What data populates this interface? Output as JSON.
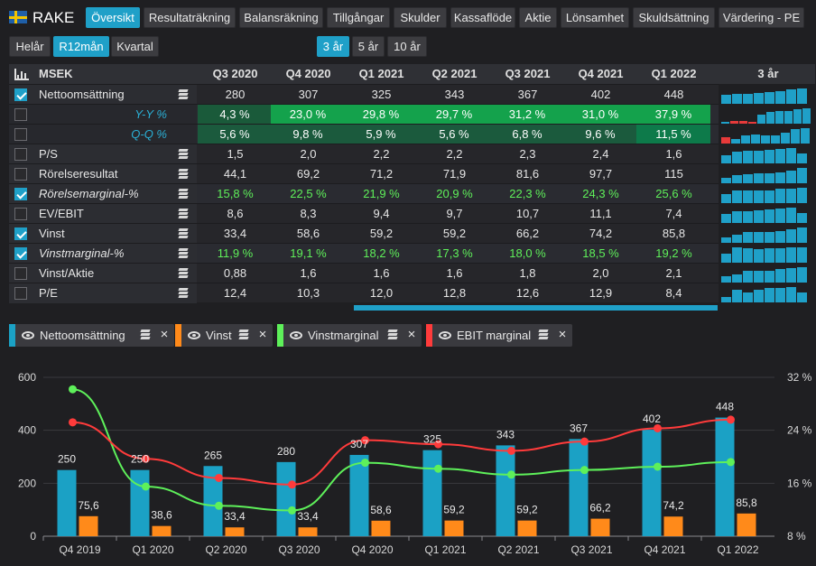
{
  "header": {
    "company": "RAKE"
  },
  "nav_tabs": [
    {
      "label": "Översikt",
      "active": true
    },
    {
      "label": "Resultaträkning",
      "active": false
    },
    {
      "label": "Balansräkning",
      "active": false
    },
    {
      "label": "Tillgångar",
      "active": false
    },
    {
      "label": "Skulder",
      "active": false
    },
    {
      "label": "Kassaflöde",
      "active": false
    },
    {
      "label": "Aktie",
      "active": false
    },
    {
      "label": "Lönsamhet",
      "active": false
    },
    {
      "label": "Skuldsättning",
      "active": false
    },
    {
      "label": "Värdering - PE",
      "active": false
    }
  ],
  "period_tabs": [
    {
      "label": "Helår",
      "active": false
    },
    {
      "label": "R12mån",
      "active": true
    },
    {
      "label": "Kvartal",
      "active": false
    }
  ],
  "range_tabs": [
    {
      "label": "3 år",
      "active": true
    },
    {
      "label": "5 år",
      "active": false
    },
    {
      "label": "10 år",
      "active": false
    }
  ],
  "table": {
    "unit": "MSEK",
    "columns": [
      "Q3 2020",
      "Q4 2020",
      "Q1 2021",
      "Q2 2021",
      "Q3 2021",
      "Q4 2021",
      "Q1 2022"
    ],
    "spark_header": "3 år",
    "rows": [
      {
        "label": "Nettoomsättning",
        "checked": true,
        "kind": "metric",
        "italic": false,
        "values": [
          "280",
          "307",
          "325",
          "343",
          "367",
          "402",
          "448"
        ],
        "spark": [
          0.58,
          0.62,
          0.66,
          0.72,
          0.77,
          0.85,
          0.95,
          1.0
        ]
      },
      {
        "label": "Y-Y %",
        "checked": false,
        "kind": "yy",
        "italic": true,
        "values": [
          "4,3 %",
          "23,0 %",
          "29,8 %",
          "29,7 %",
          "31,2 %",
          "31,0 %",
          "37,9 %"
        ],
        "spark": [
          0.08,
          -0.15,
          -0.2,
          -0.12,
          0.6,
          0.75,
          0.8,
          0.85,
          0.95,
          1.0
        ]
      },
      {
        "label": "Q-Q %",
        "checked": false,
        "kind": "qq",
        "italic": true,
        "values": [
          "5,6 %",
          "9,8 %",
          "5,9 %",
          "5,6 %",
          "6,8 %",
          "9,6 %",
          "11,5 %"
        ],
        "spark": [
          -0.4,
          0.3,
          0.5,
          0.6,
          0.5,
          0.55,
          0.7,
          0.95,
          1.0
        ]
      },
      {
        "label": "P/S",
        "checked": false,
        "kind": "metric",
        "italic": false,
        "values": [
          "1,5",
          "2,0",
          "2,2",
          "2,2",
          "2,3",
          "2,4",
          "1,6"
        ],
        "spark": [
          0.55,
          0.75,
          0.85,
          0.85,
          0.9,
          0.92,
          1.0,
          0.65
        ]
      },
      {
        "label": "Rörelseresultat",
        "checked": false,
        "kind": "metric",
        "italic": false,
        "values": [
          "44,1",
          "69,2",
          "71,2",
          "71,9",
          "81,6",
          "97,7",
          "115"
        ],
        "spark": [
          0.38,
          0.5,
          0.6,
          0.62,
          0.63,
          0.72,
          0.85,
          1.0
        ]
      },
      {
        "label": "Rörelsemarginal-%",
        "checked": true,
        "kind": "green",
        "italic": true,
        "values": [
          "15,8 %",
          "22,5 %",
          "21,9 %",
          "20,9 %",
          "22,3 %",
          "24,3 %",
          "25,6 %"
        ],
        "spark": [
          0.6,
          0.85,
          0.82,
          0.8,
          0.85,
          0.92,
          0.95,
          1.0
        ]
      },
      {
        "label": "EV/EBIT",
        "checked": false,
        "kind": "metric",
        "italic": false,
        "values": [
          "8,6",
          "8,3",
          "9,4",
          "9,7",
          "10,7",
          "11,1",
          "7,4"
        ],
        "spark": [
          0.6,
          0.75,
          0.75,
          0.85,
          0.88,
          0.97,
          1.0,
          0.67
        ]
      },
      {
        "label": "Vinst",
        "checked": true,
        "kind": "metric",
        "italic": false,
        "values": [
          "33,4",
          "58,6",
          "59,2",
          "59,2",
          "66,2",
          "74,2",
          "85,8"
        ],
        "spark": [
          0.38,
          0.5,
          0.68,
          0.69,
          0.69,
          0.77,
          0.86,
          1.0
        ]
      },
      {
        "label": "Vinstmarginal-%",
        "checked": true,
        "kind": "green",
        "italic": true,
        "values": [
          "11,9 %",
          "19,1 %",
          "18,2 %",
          "17,3 %",
          "18,0 %",
          "18,5 %",
          "19,2 %"
        ],
        "spark": [
          0.6,
          0.98,
          0.95,
          0.9,
          0.94,
          0.96,
          1.0,
          1.0
        ]
      },
      {
        "label": "Vinst/Aktie",
        "checked": false,
        "kind": "metric",
        "italic": false,
        "values": [
          "0,88",
          "1,6",
          "1,6",
          "1,6",
          "1,8",
          "2,0",
          "2,1"
        ],
        "spark": [
          0.42,
          0.55,
          0.76,
          0.76,
          0.76,
          0.86,
          0.95,
          1.0
        ]
      },
      {
        "label": "P/E",
        "checked": false,
        "kind": "metric",
        "italic": false,
        "values": [
          "12,4",
          "10,3",
          "12,0",
          "12,8",
          "12,6",
          "12,9",
          "8,4"
        ],
        "spark": [
          0.35,
          0.8,
          0.65,
          0.85,
          0.95,
          0.93,
          1.0,
          0.65
        ]
      }
    ]
  },
  "legend": [
    {
      "label": "Nettoomsättning",
      "color": "#1ba1c5"
    },
    {
      "label": "Vinst",
      "color": "#ff8a1a"
    },
    {
      "label": "Vinstmarginal",
      "color": "#5ef05a"
    },
    {
      "label": "EBIT marginal",
      "color": "#ff3b3b"
    }
  ],
  "chart_data": {
    "type": "bar",
    "categories": [
      "Q4 2019",
      "Q1 2020",
      "Q2 2020",
      "Q3 2020",
      "Q4 2020",
      "Q1 2021",
      "Q2 2021",
      "Q3 2021",
      "Q4 2021",
      "Q1 2022"
    ],
    "y_left_ticks": [
      "0",
      "200",
      "400",
      "600"
    ],
    "y_right_ticks": [
      "8 %",
      "16 %",
      "24 %",
      "32 %"
    ],
    "ylim_left": [
      0,
      600
    ],
    "ylim_right": [
      8,
      32
    ],
    "grid": true,
    "series": [
      {
        "name": "Nettoomsättning",
        "kind": "bar",
        "color": "#1ba1c5",
        "values": [
          250,
          250,
          265,
          280,
          307,
          325,
          343,
          367,
          402,
          448
        ],
        "labels": [
          "250",
          "250",
          "265",
          "280",
          "307",
          "325",
          "343",
          "367",
          "402",
          "448"
        ]
      },
      {
        "name": "Vinst",
        "kind": "bar",
        "color": "#ff8a1a",
        "values": [
          75.6,
          38.6,
          33.4,
          33.4,
          58.6,
          59.2,
          59.2,
          66.2,
          74.2,
          85.8
        ],
        "labels": [
          "75,6",
          "38,6",
          "33,4",
          "33,4",
          "58,6",
          "59,2",
          "59,2",
          "66,2",
          "74,2",
          "85,8"
        ]
      },
      {
        "name": "Vinstmarginal",
        "kind": "line",
        "axis": "right",
        "color": "#5ef05a",
        "values": [
          30.2,
          15.5,
          12.6,
          11.9,
          19.1,
          18.2,
          17.3,
          18.0,
          18.5,
          19.2
        ]
      },
      {
        "name": "EBIT marginal",
        "kind": "line",
        "axis": "right",
        "color": "#ff3b3b",
        "values": [
          25.2,
          19.7,
          16.8,
          15.8,
          22.5,
          21.9,
          20.9,
          22.3,
          24.3,
          25.6
        ]
      }
    ]
  }
}
